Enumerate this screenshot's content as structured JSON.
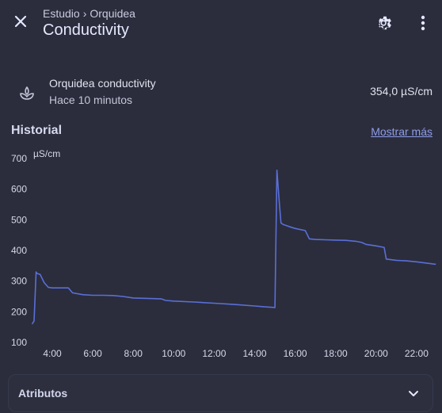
{
  "header": {
    "breadcrumb": [
      "Estudio",
      "Orquidea"
    ],
    "breadcrumb_separator": "›",
    "title": "Conductivity"
  },
  "state": {
    "name": "Orquidea conductivity",
    "last_changed": "Hace 10 minutos",
    "value": "354,0 µS/cm",
    "icon": "sprout-icon"
  },
  "history": {
    "title": "Historial",
    "show_more": "Mostrar más"
  },
  "chart_data": {
    "type": "line",
    "ylabel": "µS/cm",
    "ylim": [
      100,
      700
    ],
    "yticks": [
      "700",
      "600",
      "500",
      "400",
      "300",
      "200",
      "100"
    ],
    "xticks": [
      "4:00",
      "6:00",
      "8:00",
      "10:00",
      "12:00",
      "14:00",
      "16:00",
      "18:00",
      "20:00",
      "22:00"
    ],
    "grid": false,
    "series": [
      {
        "color": "#5a6fd6",
        "x": [
          3.0,
          3.1,
          3.2,
          3.25,
          3.4,
          3.6,
          3.8,
          4.0,
          4.5,
          4.8,
          5.0,
          5.5,
          6.0,
          6.5,
          7.0,
          7.5,
          8.0,
          8.5,
          9.0,
          9.4,
          9.6,
          10.0,
          11.0,
          12.0,
          13.0,
          14.0,
          14.5,
          15.0,
          15.1,
          15.2,
          15.3,
          15.4,
          15.7,
          16.0,
          16.5,
          16.7,
          17.0,
          17.5,
          18.0,
          18.5,
          19.0,
          19.3,
          19.5,
          20.0,
          20.4,
          20.5,
          21.0,
          21.5,
          22.0,
          22.5,
          22.95
        ],
        "y": [
          160,
          170,
          330,
          325,
          322,
          295,
          280,
          278,
          278,
          278,
          262,
          256,
          254,
          254,
          253,
          250,
          245,
          244,
          243,
          242,
          237,
          235,
          232,
          228,
          224,
          219,
          216,
          214,
          662,
          570,
          490,
          485,
          478,
          472,
          465,
          438,
          436,
          435,
          434,
          433,
          430,
          426,
          420,
          415,
          410,
          372,
          368,
          366,
          363,
          359,
          355
        ]
      }
    ]
  },
  "attributes": {
    "label": "Atributos"
  }
}
